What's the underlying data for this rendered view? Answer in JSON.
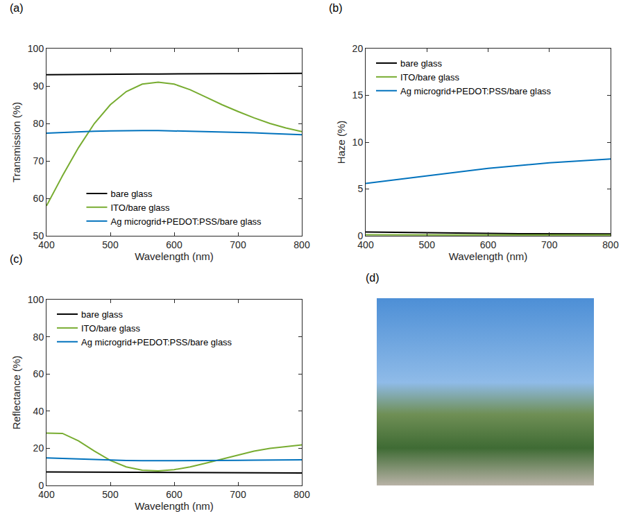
{
  "chart_data": [
    {
      "type": "line",
      "title": "(a)",
      "x_label": "Wavelength (nm)",
      "y_label": "Transmission (%)",
      "xlim": [
        400,
        800
      ],
      "xticks": [
        400,
        500,
        600,
        700,
        800
      ],
      "ylim": [
        50,
        100
      ],
      "yticks": [
        50,
        60,
        70,
        80,
        90,
        100
      ],
      "grid": false,
      "legend": "lower center",
      "x": [
        400,
        425,
        450,
        475,
        500,
        525,
        550,
        575,
        600,
        625,
        650,
        675,
        700,
        725,
        750,
        775,
        800
      ],
      "series": [
        {
          "name": "bare glass",
          "color": "#000000",
          "values": [
            93.0,
            93.05,
            93.1,
            93.1,
            93.15,
            93.2,
            93.2,
            93.2,
            93.25,
            93.3,
            93.3,
            93.3,
            93.3,
            93.35,
            93.35,
            93.4,
            93.4
          ]
        },
        {
          "name": "ITO/bare glass",
          "color": "#77ac30",
          "values": [
            58.0,
            66.0,
            73.5,
            80.0,
            85.0,
            88.5,
            90.5,
            91.0,
            90.5,
            89.0,
            87.0,
            85.0,
            83.2,
            81.5,
            80.0,
            78.8,
            77.8
          ]
        },
        {
          "name": "Ag microgrid+PEDOT:PSS/bare glass",
          "color": "#0072bd",
          "values": [
            77.4,
            77.6,
            77.8,
            77.9,
            78.0,
            78.1,
            78.1,
            78.1,
            78.0,
            77.9,
            77.8,
            77.8,
            77.6,
            77.5,
            77.3,
            77.2,
            77.0
          ]
        }
      ]
    },
    {
      "type": "line",
      "title": "(b)",
      "x_label": "Wavelength (nm)",
      "y_label": "Haze (%)",
      "xlim": [
        400,
        800
      ],
      "xticks": [
        400,
        500,
        600,
        700,
        800
      ],
      "ylim": [
        0,
        20
      ],
      "yticks": [
        0,
        5,
        10,
        15,
        20
      ],
      "grid": false,
      "legend": "upper left",
      "x": [
        400,
        450,
        500,
        550,
        600,
        650,
        700,
        750,
        800
      ],
      "series": [
        {
          "name": "bare glass",
          "color": "#000000",
          "values": [
            0.4,
            0.35,
            0.3,
            0.28,
            0.25,
            0.23,
            0.22,
            0.2,
            0.2
          ]
        },
        {
          "name": "ITO/bare glass",
          "color": "#77ac30",
          "values": [
            0.12,
            0.1,
            0.1,
            0.1,
            0.1,
            0.1,
            0.1,
            0.1,
            0.1
          ]
        },
        {
          "name": "Ag microgrid+PEDOT:PSS/bare glass",
          "color": "#0072bd",
          "values": [
            5.6,
            6.0,
            6.4,
            6.8,
            7.2,
            7.5,
            7.8,
            8.0,
            8.2
          ]
        }
      ]
    },
    {
      "type": "line",
      "title": "(c)",
      "x_label": "Wavelength (nm)",
      "y_label": "Reflectance (%)",
      "xlim": [
        400,
        800
      ],
      "xticks": [
        400,
        500,
        600,
        700,
        800
      ],
      "ylim": [
        0,
        100
      ],
      "yticks": [
        0,
        20,
        40,
        60,
        80,
        100
      ],
      "grid": false,
      "legend": "upper left",
      "x": [
        400,
        425,
        450,
        475,
        500,
        525,
        550,
        575,
        600,
        625,
        650,
        675,
        700,
        725,
        750,
        775,
        800
      ],
      "series": [
        {
          "name": "bare glass",
          "color": "#000000",
          "values": [
            7.3,
            7.25,
            7.2,
            7.15,
            7.1,
            7.05,
            7.0,
            7.0,
            6.95,
            6.9,
            6.9,
            6.85,
            6.8,
            6.8,
            6.75,
            6.7,
            6.7
          ]
        },
        {
          "name": "ITO/bare glass",
          "color": "#77ac30",
          "values": [
            28.2,
            28.0,
            24.0,
            18.5,
            13.5,
            10.0,
            8.2,
            7.8,
            8.5,
            10.0,
            12.0,
            14.2,
            16.5,
            18.5,
            20.0,
            21.0,
            21.8
          ]
        },
        {
          "name": "Ag microgrid+PEDOT:PSS/bare glass",
          "color": "#0072bd",
          "values": [
            14.8,
            14.5,
            14.2,
            13.9,
            13.6,
            13.4,
            13.3,
            13.3,
            13.3,
            13.3,
            13.4,
            13.4,
            13.5,
            13.6,
            13.7,
            13.8,
            13.8
          ]
        }
      ]
    }
  ],
  "image_panel": {
    "title": "(d)"
  }
}
